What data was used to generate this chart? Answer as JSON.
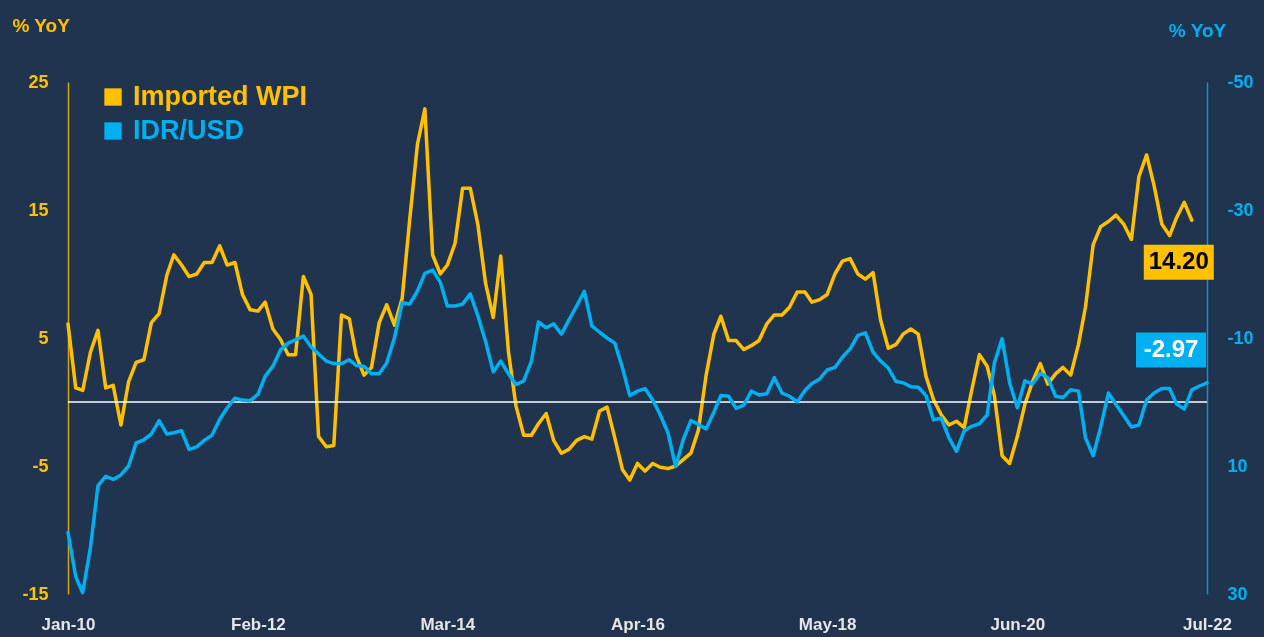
{
  "chart_data": {
    "type": "line",
    "ylabel": "% YoY",
    "y2label": "% YoY",
    "legend": "top left",
    "line_style": "solid",
    "x": [
      "2010-01",
      "2010-02",
      "2010-03",
      "2010-04",
      "2010-05",
      "2010-06",
      "2010-07",
      "2010-08",
      "2010-09",
      "2010-10",
      "2010-11",
      "2010-12",
      "2011-01",
      "2011-02",
      "2011-03",
      "2011-04",
      "2011-05",
      "2011-06",
      "2011-07",
      "2011-08",
      "2011-09",
      "2011-10",
      "2011-11",
      "2011-12",
      "2012-01",
      "2012-02",
      "2012-03",
      "2012-04",
      "2012-05",
      "2012-06",
      "2012-07",
      "2012-08",
      "2012-09",
      "2012-10",
      "2012-11",
      "2012-12",
      "2013-01",
      "2013-02",
      "2013-03",
      "2013-04",
      "2013-05",
      "2013-06",
      "2013-07",
      "2013-08",
      "2013-09",
      "2013-10",
      "2013-11",
      "2013-12",
      "2014-01",
      "2014-02",
      "2014-03",
      "2014-04",
      "2014-05",
      "2014-06",
      "2014-07",
      "2014-08",
      "2014-09",
      "2014-10",
      "2014-11",
      "2014-12",
      "2015-01",
      "2015-02",
      "2015-03",
      "2015-04",
      "2015-05",
      "2015-06",
      "2015-07",
      "2015-08",
      "2015-09",
      "2015-10",
      "2015-11",
      "2015-12",
      "2016-01",
      "2016-02",
      "2016-03",
      "2016-04",
      "2016-05",
      "2016-06",
      "2016-07",
      "2016-08",
      "2016-09",
      "2016-10",
      "2016-11",
      "2016-12",
      "2017-01",
      "2017-02",
      "2017-03",
      "2017-04",
      "2017-05",
      "2017-06",
      "2017-07",
      "2017-08",
      "2017-09",
      "2017-10",
      "2017-11",
      "2017-12",
      "2018-01",
      "2018-02",
      "2018-03",
      "2018-04",
      "2018-05",
      "2018-06",
      "2018-07",
      "2018-08",
      "2018-09",
      "2018-10",
      "2018-11",
      "2018-12",
      "2019-01",
      "2019-02",
      "2019-03",
      "2019-04",
      "2019-05",
      "2019-06",
      "2019-07",
      "2019-08",
      "2019-09",
      "2019-10",
      "2019-11",
      "2019-12",
      "2020-01",
      "2020-02",
      "2020-03",
      "2020-04",
      "2020-05",
      "2020-06",
      "2020-07",
      "2020-08",
      "2020-09",
      "2020-10",
      "2020-11",
      "2020-12",
      "2021-01",
      "2021-02",
      "2021-03",
      "2021-04",
      "2021-05",
      "2021-06",
      "2021-07",
      "2021-08",
      "2021-09",
      "2021-10",
      "2021-11",
      "2021-12",
      "2022-01",
      "2022-02",
      "2022-03",
      "2022-04",
      "2022-05",
      "2022-06",
      "2022-07"
    ],
    "xlim": [
      "2010-01",
      "2022-07"
    ],
    "xticks": [
      {
        "value": "2010-01",
        "label": "Jan-10"
      },
      {
        "value": "2012-02",
        "label": "Feb-12"
      },
      {
        "value": "2014-03",
        "label": "Mar-14"
      },
      {
        "value": "2016-04",
        "label": "Apr-16"
      },
      {
        "value": "2018-05",
        "label": "May-18"
      },
      {
        "value": "2020-06",
        "label": "Jun-20"
      },
      {
        "value": "2022-07",
        "label": "Jul-22"
      }
    ],
    "ylim": [
      -15,
      25
    ],
    "yticks": [
      -15,
      -5,
      5,
      15,
      25
    ],
    "y2lim": [
      30,
      -50
    ],
    "y2ticks": [
      30,
      10,
      -10,
      -30,
      -50
    ],
    "ref_lines": [
      {
        "axis": "y",
        "value": 0,
        "color": "#ffffff"
      }
    ],
    "series": [
      {
        "name": "Imported WPI",
        "color": "#ffc000",
        "values": [
          6.1,
          1.1,
          0.9,
          3.9,
          5.6,
          1.1,
          1.3,
          -1.8,
          1.6,
          3.1,
          3.3,
          6.2,
          6.9,
          9.9,
          11.5,
          10.7,
          9.8,
          10.0,
          10.9,
          10.9,
          12.2,
          10.7,
          10.9,
          8.4,
          7.2,
          7.1,
          7.8,
          5.7,
          4.9,
          3.7,
          3.7,
          9.8,
          8.4,
          -2.7,
          -3.5,
          -3.4,
          6.8,
          6.5,
          3.6,
          2.1,
          2.7,
          6.2,
          7.6,
          6.0,
          8.1,
          14.2,
          20.1,
          22.9,
          11.5,
          10.0,
          10.7,
          12.4,
          16.7,
          16.7,
          13.9,
          9.3,
          6.6,
          11.4,
          3.9,
          -0.3,
          -2.6,
          -2.6,
          -1.7,
          -0.9,
          -3.0,
          -4.0,
          -3.7,
          -3.0,
          -2.7,
          -2.9,
          -0.7,
          -0.4,
          -2.8,
          -5.3,
          -6.1,
          -4.8,
          -5.4,
          -4.8,
          -5.1,
          -5.2,
          -5.0,
          -4.5,
          -4.0,
          -2.2,
          2.1,
          5.3,
          6.7,
          4.8,
          4.8,
          4.1,
          4.4,
          4.8,
          6.1,
          6.8,
          6.8,
          7.4,
          8.6,
          8.6,
          7.8,
          8.0,
          8.4,
          10.0,
          11.0,
          11.2,
          10.0,
          9.6,
          10.1,
          6.4,
          4.2,
          4.5,
          5.3,
          5.7,
          5.3,
          2.0,
          0.2,
          -1.0,
          -1.8,
          -1.5,
          -2.0,
          0.9,
          3.7,
          2.8,
          0.5,
          -4.2,
          -4.8,
          -2.7,
          -0.2,
          1.6,
          3.0,
          1.4,
          2.2,
          2.7,
          2.1,
          4.5,
          7.4,
          12.3,
          13.7,
          14.1,
          14.6,
          13.9,
          12.7,
          17.6,
          19.3,
          16.9,
          13.9,
          13.0,
          14.4,
          15.6,
          14.2,
          null,
          null
        ],
        "value_labels": [
          null,
          null,
          null,
          null,
          null,
          null,
          null,
          null,
          null,
          null,
          null,
          null,
          null,
          null,
          null,
          null,
          null,
          null,
          null,
          null,
          null,
          null,
          null,
          null,
          null,
          null,
          null,
          null,
          null,
          null,
          null,
          null,
          null,
          null,
          null,
          null,
          null,
          null,
          null,
          null,
          null,
          null,
          null,
          null,
          null,
          null,
          null,
          null,
          null,
          null,
          null,
          null,
          null,
          null,
          null,
          null,
          null,
          null,
          null,
          null,
          null,
          null,
          null,
          null,
          null,
          null,
          null,
          null,
          null,
          null,
          null,
          null,
          null,
          null,
          null,
          null,
          null,
          null,
          null,
          null,
          null,
          null,
          null,
          null,
          null,
          null,
          null,
          null,
          null,
          null,
          null,
          null,
          null,
          null,
          null,
          null,
          null,
          null,
          null,
          null,
          null,
          null,
          null,
          null,
          null,
          null,
          null,
          null,
          null,
          null,
          null,
          null,
          null,
          null,
          null,
          null,
          null,
          null,
          null,
          null,
          null,
          null,
          null,
          null,
          null,
          null,
          null,
          null,
          null,
          null,
          null,
          null,
          null,
          null,
          null,
          null,
          null,
          null,
          null,
          null,
          null,
          null,
          null,
          null,
          null,
          null,
          null,
          null,
          "14.20",
          null,
          null
        ]
      },
      {
        "name": "IDR/USD",
        "color": "#00b0f0",
        "axis": "y2",
        "values": [
          20.4,
          27.3,
          29.8,
          22.7,
          13.1,
          11.6,
          12.1,
          11.4,
          10.0,
          6.4,
          5.9,
          5.0,
          2.9,
          5.0,
          4.8,
          4.5,
          7.4,
          7.0,
          6.0,
          5.2,
          2.7,
          0.9,
          -0.6,
          -0.3,
          -0.2,
          -1.2,
          -4.0,
          -5.6,
          -8.1,
          -9.2,
          -9.7,
          -10.3,
          -8.6,
          -7.5,
          -6.4,
          -6.0,
          -6.0,
          -6.6,
          -5.7,
          -5.6,
          -4.4,
          -4.4,
          -6.1,
          -10.0,
          -15.5,
          -15.3,
          -17.3,
          -20.1,
          -20.6,
          -18.7,
          -15.0,
          -15.0,
          -15.3,
          -16.9,
          -13.5,
          -9.5,
          -4.7,
          -6.4,
          -4.4,
          -2.7,
          -3.3,
          -6.4,
          -12.5,
          -11.6,
          -12.2,
          -10.6,
          -12.8,
          -15.0,
          -17.3,
          -11.9,
          -10.9,
          -10.0,
          -9.2,
          -5.3,
          -1.0,
          -1.7,
          -2.1,
          -0.3,
          2.0,
          4.8,
          10.1,
          5.9,
          2.9,
          3.5,
          4.2,
          1.6,
          -1.0,
          -0.9,
          1.0,
          0.5,
          -1.7,
          -1.1,
          -1.3,
          -3.8,
          -1.4,
          -0.9,
          0.0,
          -1.8,
          -2.9,
          -3.6,
          -5.0,
          -5.4,
          -7.0,
          -8.3,
          -10.4,
          -10.8,
          -7.8,
          -6.4,
          -5.3,
          -3.2,
          -3.0,
          -2.4,
          -2.3,
          -1.0,
          2.8,
          2.5,
          5.6,
          7.7,
          4.5,
          3.8,
          3.4,
          2.0,
          -6.1,
          -9.9,
          -3.0,
          0.9,
          -3.3,
          -2.8,
          -4.5,
          -3.8,
          -0.9,
          -0.7,
          -1.9,
          -1.7,
          5.6,
          8.4,
          3.9,
          -1.4,
          0.4,
          2.1,
          3.9,
          3.6,
          -0.3,
          -1.4,
          -2.1,
          -2.1,
          0.3,
          1.1,
          -1.9,
          -2.5,
          -2.97
        ],
        "value_labels": [
          null,
          null,
          null,
          null,
          null,
          null,
          null,
          null,
          null,
          null,
          null,
          null,
          null,
          null,
          null,
          null,
          null,
          null,
          null,
          null,
          null,
          null,
          null,
          null,
          null,
          null,
          null,
          null,
          null,
          null,
          null,
          null,
          null,
          null,
          null,
          null,
          null,
          null,
          null,
          null,
          null,
          null,
          null,
          null,
          null,
          null,
          null,
          null,
          null,
          null,
          null,
          null,
          null,
          null,
          null,
          null,
          null,
          null,
          null,
          null,
          null,
          null,
          null,
          null,
          null,
          null,
          null,
          null,
          null,
          null,
          null,
          null,
          null,
          null,
          null,
          null,
          null,
          null,
          null,
          null,
          null,
          null,
          null,
          null,
          null,
          null,
          null,
          null,
          null,
          null,
          null,
          null,
          null,
          null,
          null,
          null,
          null,
          null,
          null,
          null,
          null,
          null,
          null,
          null,
          null,
          null,
          null,
          null,
          null,
          null,
          null,
          null,
          null,
          null,
          null,
          null,
          null,
          null,
          null,
          null,
          null,
          null,
          null,
          null,
          null,
          null,
          null,
          null,
          null,
          null,
          null,
          null,
          null,
          null,
          null,
          null,
          null,
          null,
          null,
          null,
          null,
          null,
          null,
          null,
          null,
          null,
          null,
          null,
          null,
          null,
          "-2.97"
        ]
      }
    ]
  }
}
